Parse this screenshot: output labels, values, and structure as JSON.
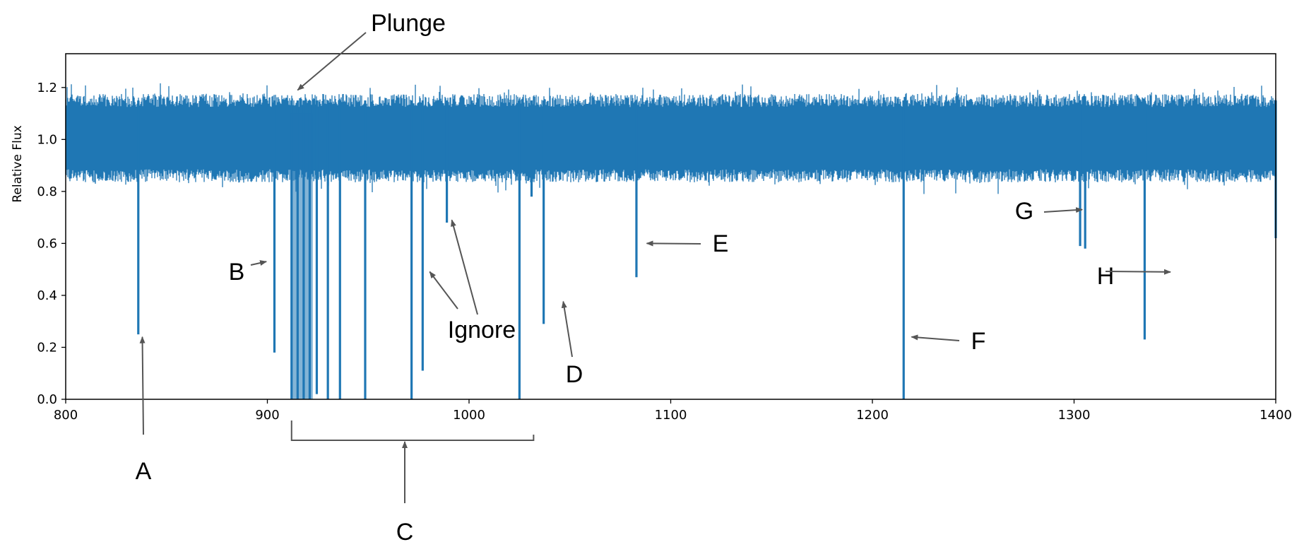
{
  "chart_data": {
    "type": "line",
    "title": "",
    "xlabel": "",
    "ylabel": "Relative Flux",
    "xlim": [
      800,
      1400
    ],
    "ylim": [
      0.0,
      1.33
    ],
    "x_ticks": [
      "800",
      "900",
      "1000",
      "1100",
      "1200",
      "1300",
      "1400"
    ],
    "y_ticks": [
      "0.0",
      "0.2",
      "0.4",
      "0.6",
      "0.8",
      "1.0",
      "1.2"
    ],
    "grid": false,
    "series_color": "#1f77b4",
    "baseline": {
      "mean": 1.0,
      "upper": 1.15,
      "lower": 0.86
    },
    "dips": [
      {
        "x": 836,
        "min_flux": 0.25
      },
      {
        "x": 903.5,
        "min_flux": 0.18
      },
      {
        "x": 912,
        "min_flux": 0.0
      },
      {
        "x": 915,
        "min_flux": 0.0
      },
      {
        "x": 918,
        "min_flux": 0.0
      },
      {
        "x": 921,
        "min_flux": 0.0
      },
      {
        "x": 924.5,
        "min_flux": 0.02
      },
      {
        "x": 930,
        "min_flux": 0.0
      },
      {
        "x": 936,
        "min_flux": 0.0
      },
      {
        "x": 948.5,
        "min_flux": 0.0
      },
      {
        "x": 971.5,
        "min_flux": 0.0
      },
      {
        "x": 977,
        "min_flux": 0.11
      },
      {
        "x": 989,
        "min_flux": 0.68
      },
      {
        "x": 1025,
        "min_flux": 0.0
      },
      {
        "x": 1031,
        "min_flux": 0.78
      },
      {
        "x": 1037,
        "min_flux": 0.29
      },
      {
        "x": 1083,
        "min_flux": 0.47
      },
      {
        "x": 1215.5,
        "min_flux": 0.0
      },
      {
        "x": 1303,
        "min_flux": 0.59
      },
      {
        "x": 1305.5,
        "min_flux": 0.58
      },
      {
        "x": 1335,
        "min_flux": 0.23
      },
      {
        "x": 1400,
        "min_flux": 0.62
      }
    ],
    "annotations": [
      {
        "label": "Plunge",
        "x": 915,
        "y": 1.19
      },
      {
        "label": "A",
        "x": 838,
        "y": 0.24
      },
      {
        "label": "B",
        "x": 903,
        "y": 0.53
      },
      {
        "label": "C",
        "x": 969,
        "y": -0.14
      },
      {
        "label": "D",
        "x": 1039,
        "y": 0.36
      },
      {
        "label": "E",
        "x": 1086,
        "y": 0.6
      },
      {
        "label": "F",
        "x": 1218,
        "y": 0.24
      },
      {
        "label": "G",
        "x": 1303,
        "y": 0.73
      },
      {
        "label": "H",
        "x": 1338,
        "y": 0.49
      },
      {
        "label": "Ignore",
        "x": 977,
        "y": 0.48
      }
    ],
    "bracket_range": [
      912,
      1032
    ]
  }
}
